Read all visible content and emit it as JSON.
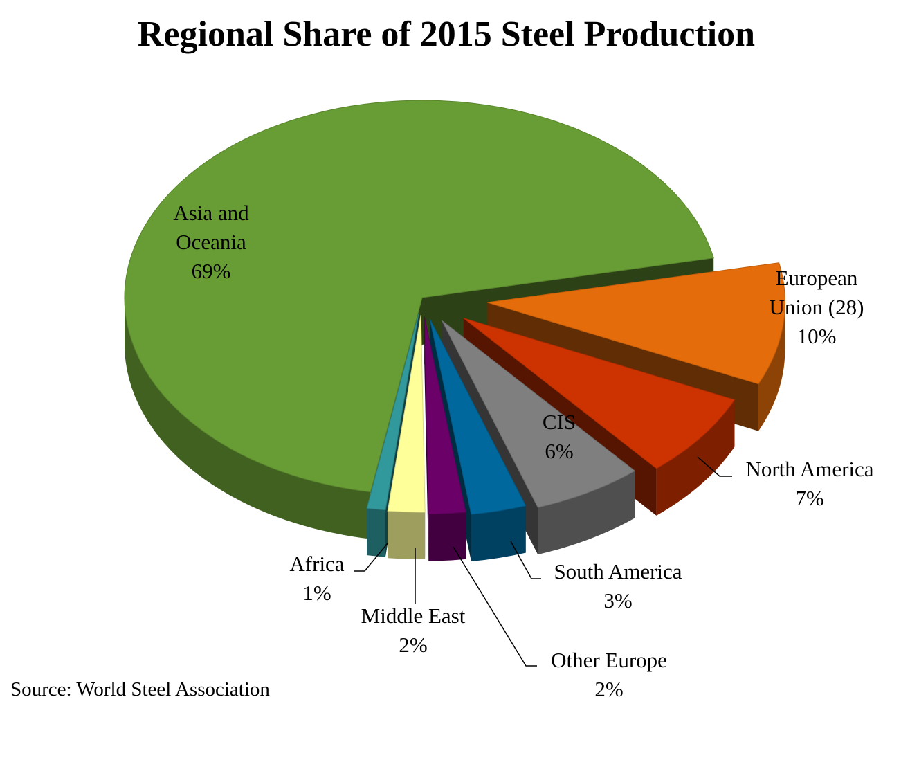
{
  "chart_data": {
    "type": "pie",
    "title": "Regional Share of 2015 Steel Production",
    "source": "Source: World Steel Association",
    "slices": [
      {
        "label": [
          "Asia and",
          "Oceania"
        ],
        "value_label": "69%",
        "value": 69,
        "color": "#689c34"
      },
      {
        "label": [
          "European",
          "Union (28)"
        ],
        "value_label": "10%",
        "value": 10,
        "color": "#e46c0a"
      },
      {
        "label": [
          "North America"
        ],
        "value_label": "7%",
        "value": 7,
        "color": "#cc3300"
      },
      {
        "label": [
          "CIS"
        ],
        "value_label": "6%",
        "value": 6,
        "color": "#7f7f7f"
      },
      {
        "label": [
          "South America"
        ],
        "value_label": "3%",
        "value": 3,
        "color": "#00689c"
      },
      {
        "label": [
          "Other Europe"
        ],
        "value_label": "2%",
        "value": 2,
        "color": "#6a0068"
      },
      {
        "label": [
          "Middle East"
        ],
        "value_label": "2%",
        "value": 2,
        "color": "#ffff99"
      },
      {
        "label": [
          "Africa"
        ],
        "value_label": "1%",
        "value": 1,
        "color": "#31999c"
      }
    ]
  }
}
